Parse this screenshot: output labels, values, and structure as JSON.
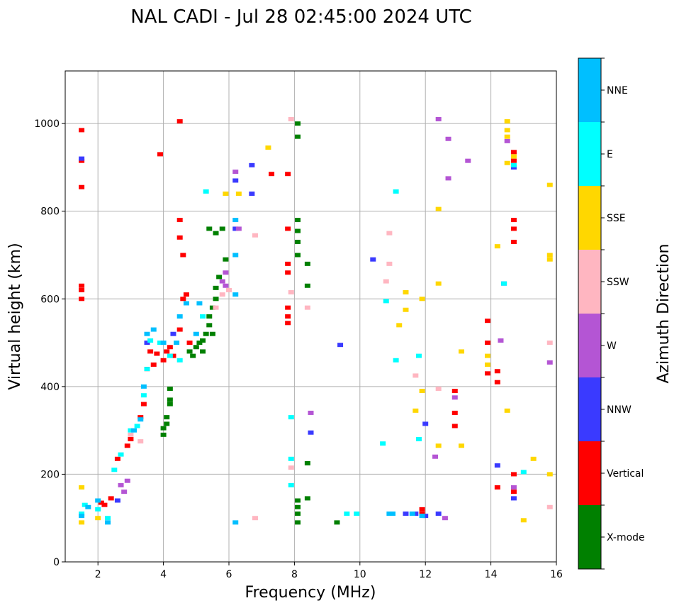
{
  "chart_data": {
    "type": "scatter",
    "title": "NAL CADI - Jul 28 02:45:00 2024 UTC",
    "xlabel": "Frequency (MHz)",
    "ylabel": "Virtual height (km)",
    "xlim": [
      1,
      16
    ],
    "ylim": [
      0,
      1120
    ],
    "grid": true,
    "x_ticks": [
      2,
      4,
      6,
      8,
      10,
      12,
      14,
      16
    ],
    "y_ticks": [
      0,
      200,
      400,
      600,
      800,
      1000
    ],
    "colorbar": {
      "label": "Azimuth Direction",
      "categories": [
        {
          "name": "X-mode",
          "color": "#008000"
        },
        {
          "name": "Vertical",
          "color": "#ff0000"
        },
        {
          "name": "NNW",
          "color": "#3a3aff"
        },
        {
          "name": "W",
          "color": "#b455d4"
        },
        {
          "name": "SSW",
          "color": "#ffb6c1"
        },
        {
          "name": "SSE",
          "color": "#ffd700"
        },
        {
          "name": "E",
          "color": "#00ffff"
        },
        {
          "name": "NNE",
          "color": "#00bfff"
        }
      ]
    },
    "series": [
      {
        "name": "X-mode",
        "points": [
          [
            4.0,
            290
          ],
          [
            4.0,
            305
          ],
          [
            4.1,
            315
          ],
          [
            4.1,
            330
          ],
          [
            4.2,
            360
          ],
          [
            4.2,
            370
          ],
          [
            4.2,
            395
          ],
          [
            4.8,
            480
          ],
          [
            5.0,
            490
          ],
          [
            5.1,
            500
          ],
          [
            5.2,
            505
          ],
          [
            5.3,
            520
          ],
          [
            5.4,
            540
          ],
          [
            5.4,
            560
          ],
          [
            5.5,
            580
          ],
          [
            5.6,
            600
          ],
          [
            5.6,
            625
          ],
          [
            5.7,
            650
          ],
          [
            5.4,
            760
          ],
          [
            5.6,
            750
          ],
          [
            5.8,
            760
          ],
          [
            4.9,
            470
          ],
          [
            5.2,
            480
          ],
          [
            8.1,
            90
          ],
          [
            8.1,
            110
          ],
          [
            8.1,
            125
          ],
          [
            8.1,
            140
          ],
          [
            8.1,
            700
          ],
          [
            8.1,
            730
          ],
          [
            8.1,
            755
          ],
          [
            8.1,
            780
          ],
          [
            8.1,
            970
          ],
          [
            8.1,
            1000
          ],
          [
            8.4,
            145
          ],
          [
            8.4,
            225
          ],
          [
            8.4,
            630
          ],
          [
            8.4,
            680
          ],
          [
            9.3,
            90
          ],
          [
            5.9,
            690
          ],
          [
            5.5,
            520
          ]
        ]
      },
      {
        "name": "Vertical",
        "points": [
          [
            1.5,
            600
          ],
          [
            1.5,
            620
          ],
          [
            1.5,
            630
          ],
          [
            1.5,
            855
          ],
          [
            1.5,
            915
          ],
          [
            1.5,
            985
          ],
          [
            2.1,
            135
          ],
          [
            2.2,
            130
          ],
          [
            2.4,
            145
          ],
          [
            2.6,
            235
          ],
          [
            2.9,
            265
          ],
          [
            3.0,
            280
          ],
          [
            3.3,
            330
          ],
          [
            3.4,
            360
          ],
          [
            3.5,
            440
          ],
          [
            3.7,
            450
          ],
          [
            3.8,
            475
          ],
          [
            4.0,
            460
          ],
          [
            4.1,
            480
          ],
          [
            4.3,
            470
          ],
          [
            4.5,
            530
          ],
          [
            4.6,
            600
          ],
          [
            4.7,
            610
          ],
          [
            4.5,
            780
          ],
          [
            4.5,
            740
          ],
          [
            4.6,
            700
          ],
          [
            3.9,
            930
          ],
          [
            4.5,
            1005
          ],
          [
            7.8,
            545
          ],
          [
            7.8,
            560
          ],
          [
            7.8,
            580
          ],
          [
            7.8,
            660
          ],
          [
            7.8,
            680
          ],
          [
            7.8,
            760
          ],
          [
            7.8,
            885
          ],
          [
            7.3,
            885
          ],
          [
            12.9,
            310
          ],
          [
            12.9,
            340
          ],
          [
            12.9,
            390
          ],
          [
            13.9,
            430
          ],
          [
            13.9,
            500
          ],
          [
            13.9,
            550
          ],
          [
            14.2,
            170
          ],
          [
            14.2,
            410
          ],
          [
            14.2,
            435
          ],
          [
            14.7,
            160
          ],
          [
            14.7,
            200
          ],
          [
            14.7,
            730
          ],
          [
            14.7,
            760
          ],
          [
            14.7,
            780
          ],
          [
            14.7,
            915
          ],
          [
            14.7,
            935
          ],
          [
            11.9,
            110
          ],
          [
            11.9,
            120
          ],
          [
            3.6,
            480
          ],
          [
            4.2,
            490
          ],
          [
            4.8,
            500
          ]
        ]
      },
      {
        "name": "NNW",
        "points": [
          [
            1.5,
            920
          ],
          [
            6.2,
            870
          ],
          [
            6.2,
            760
          ],
          [
            6.7,
            840
          ],
          [
            6.7,
            905
          ],
          [
            8.5,
            295
          ],
          [
            9.4,
            495
          ],
          [
            10.4,
            690
          ],
          [
            11.4,
            110
          ],
          [
            11.7,
            110
          ],
          [
            12.0,
            105
          ],
          [
            12.0,
            315
          ],
          [
            12.4,
            110
          ],
          [
            14.2,
            220
          ],
          [
            14.4,
            635
          ],
          [
            14.7,
            145
          ],
          [
            14.7,
            900
          ],
          [
            2.6,
            140
          ],
          [
            3.5,
            500
          ],
          [
            4.3,
            520
          ]
        ]
      },
      {
        "name": "W",
        "points": [
          [
            2.8,
            160
          ],
          [
            2.9,
            185
          ],
          [
            2.7,
            175
          ],
          [
            5.8,
            640
          ],
          [
            5.9,
            660
          ],
          [
            6.2,
            890
          ],
          [
            8.5,
            340
          ],
          [
            12.3,
            240
          ],
          [
            12.6,
            100
          ],
          [
            12.9,
            375
          ],
          [
            12.4,
            1010
          ],
          [
            12.7,
            965
          ],
          [
            12.7,
            875
          ],
          [
            13.3,
            915
          ],
          [
            14.5,
            960
          ],
          [
            14.3,
            505
          ],
          [
            15.8,
            455
          ],
          [
            14.7,
            170
          ],
          [
            6.3,
            760
          ],
          [
            5.9,
            630
          ]
        ]
      },
      {
        "name": "SSW",
        "points": [
          [
            5.6,
            580
          ],
          [
            5.8,
            610
          ],
          [
            6.0,
            620
          ],
          [
            7.9,
            1010
          ],
          [
            7.9,
            615
          ],
          [
            7.9,
            215
          ],
          [
            8.4,
            580
          ],
          [
            10.8,
            640
          ],
          [
            10.9,
            680
          ],
          [
            10.9,
            750
          ],
          [
            11.7,
            425
          ],
          [
            12.4,
            395
          ],
          [
            15.8,
            500
          ],
          [
            15.8,
            125
          ],
          [
            6.8,
            100
          ],
          [
            6.8,
            745
          ],
          [
            3.3,
            275
          ],
          [
            3.0,
            290
          ]
        ]
      },
      {
        "name": "SSE",
        "points": [
          [
            1.5,
            90
          ],
          [
            1.5,
            170
          ],
          [
            5.9,
            840
          ],
          [
            6.3,
            840
          ],
          [
            7.2,
            945
          ],
          [
            11.2,
            540
          ],
          [
            11.4,
            575
          ],
          [
            11.4,
            615
          ],
          [
            11.9,
            390
          ],
          [
            11.9,
            600
          ],
          [
            11.7,
            345
          ],
          [
            12.4,
            635
          ],
          [
            12.4,
            805
          ],
          [
            13.1,
            480
          ],
          [
            12.4,
            265
          ],
          [
            13.1,
            265
          ],
          [
            13.9,
            450
          ],
          [
            13.9,
            470
          ],
          [
            14.2,
            720
          ],
          [
            14.5,
            345
          ],
          [
            14.5,
            1005
          ],
          [
            14.5,
            985
          ],
          [
            14.5,
            970
          ],
          [
            14.5,
            910
          ],
          [
            14.7,
            925
          ],
          [
            15.0,
            95
          ],
          [
            15.3,
            235
          ],
          [
            15.8,
            200
          ],
          [
            15.8,
            690
          ],
          [
            15.8,
            700
          ],
          [
            15.8,
            860
          ],
          [
            2.0,
            100
          ]
        ]
      },
      {
        "name": "E",
        "points": [
          [
            1.5,
            110
          ],
          [
            1.6,
            130
          ],
          [
            2.0,
            120
          ],
          [
            2.3,
            100
          ],
          [
            2.5,
            210
          ],
          [
            2.7,
            245
          ],
          [
            3.0,
            300
          ],
          [
            3.2,
            310
          ],
          [
            3.4,
            380
          ],
          [
            3.5,
            440
          ],
          [
            3.6,
            505
          ],
          [
            3.9,
            500
          ],
          [
            4.2,
            470
          ],
          [
            4.5,
            460
          ],
          [
            5.2,
            560
          ],
          [
            5.3,
            845
          ],
          [
            9.6,
            110
          ],
          [
            9.9,
            110
          ],
          [
            10.7,
            270
          ],
          [
            10.8,
            595
          ],
          [
            11.1,
            460
          ],
          [
            11.1,
            845
          ],
          [
            11.8,
            280
          ],
          [
            11.8,
            470
          ],
          [
            7.9,
            235
          ],
          [
            7.9,
            175
          ],
          [
            7.9,
            330
          ],
          [
            15.0,
            205
          ],
          [
            14.4,
            635
          ],
          [
            14.7,
            905
          ]
        ]
      },
      {
        "name": "NNE",
        "points": [
          [
            1.5,
            105
          ],
          [
            1.7,
            125
          ],
          [
            2.0,
            140
          ],
          [
            3.1,
            300
          ],
          [
            3.3,
            325
          ],
          [
            3.4,
            400
          ],
          [
            3.5,
            520
          ],
          [
            3.7,
            530
          ],
          [
            4.0,
            500
          ],
          [
            4.4,
            500
          ],
          [
            4.5,
            560
          ],
          [
            4.7,
            590
          ],
          [
            5.0,
            520
          ],
          [
            5.1,
            590
          ],
          [
            6.2,
            610
          ],
          [
            6.2,
            780
          ],
          [
            6.2,
            700
          ],
          [
            6.2,
            90
          ],
          [
            11.0,
            110
          ],
          [
            11.6,
            110
          ],
          [
            11.9,
            105
          ],
          [
            10.9,
            110
          ],
          [
            2.3,
            90
          ]
        ]
      }
    ]
  }
}
